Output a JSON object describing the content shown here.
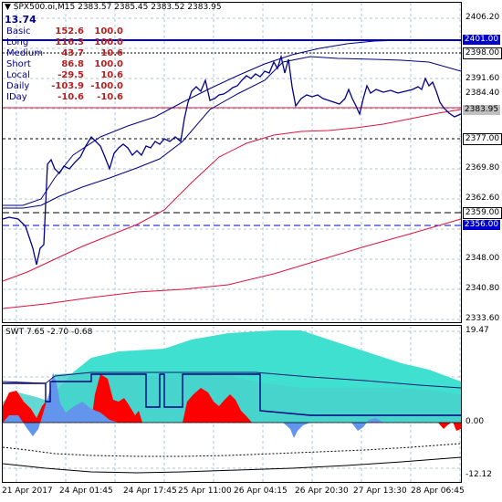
{
  "header": {
    "symbol_line": "SPX500.oi,M15  2383.57 2385.45 2383.52 2383.95",
    "value": "13.74"
  },
  "stats": [
    {
      "name": "Basic",
      "a": "152.6",
      "b": "100.0"
    },
    {
      "name": "Long",
      "a": "116.3",
      "b": "100.0"
    },
    {
      "name": "Medium",
      "a": "43.7",
      "b": "10.6"
    },
    {
      "name": "Short",
      "a": "86.8",
      "b": "100.0"
    },
    {
      "name": "Local",
      "a": "-29.5",
      "b": "10.6"
    },
    {
      "name": "Daily",
      "a": "-103.9",
      "b": "-100.0"
    },
    {
      "name": "IDay",
      "a": "-10.6",
      "b": "-10.6"
    }
  ],
  "price_axis": [
    "2406.20",
    "2391.60",
    "2384.40",
    "2369.80",
    "2362.60",
    "2348.00",
    "2340.80",
    "2333.60"
  ],
  "price_tags": [
    {
      "value": "2401.00",
      "bg": "#0000cd",
      "fg": "#ffffff"
    },
    {
      "value": "2398.00",
      "bg": "#ffffff",
      "fg": "#000000"
    },
    {
      "value": "2383.95",
      "bg": "#c0c0c0",
      "fg": "#000000"
    },
    {
      "value": "2377.00",
      "bg": "#ffffff",
      "fg": "#000000"
    },
    {
      "value": "2359.00",
      "bg": "#ffffff",
      "fg": "#000000"
    },
    {
      "value": "2356.00",
      "bg": "#0000cd",
      "fg": "#ffffff"
    }
  ],
  "indicator": {
    "label": "SWT 7.65 -2.70 -0.68",
    "axis": [
      "19.47",
      "0.00",
      "-12.12"
    ]
  },
  "time_axis": [
    "21 Apr 2017",
    "24 Apr 01:45",
    "24 Apr 17:45",
    "25 Apr 11:00",
    "26 Apr 04:15",
    "26 Apr 20:30",
    "27 Apr 13:30",
    "28 Apr 06:45"
  ],
  "colors": {
    "price_line": "#00008b",
    "ma_red": "#dc143c",
    "envelope": "#000080",
    "turquoise": "#40e0d0",
    "indicator_red": "#ff0000",
    "indicator_blue": "#6495ed",
    "grid": "#aac8dc"
  }
}
